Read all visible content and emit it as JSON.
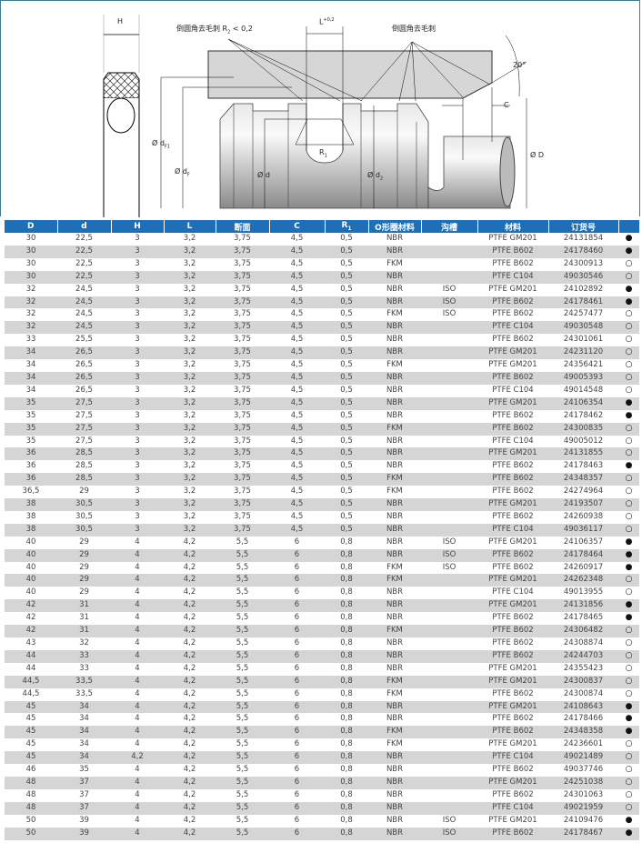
{
  "drawing": {
    "label_H": "H",
    "label_L": "L",
    "label_L_tol": "+0,2",
    "label_chamfer_r2": "倒圆角去毛刺 R",
    "label_r2_sub": "2",
    "label_r2_val": " < 0,2",
    "label_chamfer": "倒圆角去毛刺",
    "label_angle": "20°",
    "label_C": "C",
    "label_D": "Ø D",
    "label_dF1": "Ø d",
    "label_dF1_sub": "F1",
    "label_dF": "Ø d",
    "label_dF_sub": "F",
    "label_d": "Ø d",
    "label_R1": "R",
    "label_R1_sub": "1",
    "label_d2": "Ø d",
    "label_d2_sub": "2"
  },
  "table": {
    "headers": [
      "D",
      "d",
      "H",
      "L",
      "断面",
      "C",
      "R",
      "O形圈材料",
      "沟槽",
      "材料",
      "订货号",
      ""
    ],
    "header_R_sub": "1",
    "marker_symbols": {
      "filled": "●",
      "open": "○"
    },
    "rows": [
      [
        "30",
        "22,5",
        "3",
        "3,2",
        "3,75",
        "4,5",
        "0,5",
        "NBR",
        "",
        "PTFE GM201",
        "24131854",
        "filled"
      ],
      [
        "30",
        "22,5",
        "3",
        "3,2",
        "3,75",
        "4,5",
        "0,5",
        "NBR",
        "",
        "PTFE B602",
        "24178460",
        "filled"
      ],
      [
        "30",
        "22,5",
        "3",
        "3,2",
        "3,75",
        "4,5",
        "0,5",
        "FKM",
        "",
        "PTFE B602",
        "24300913",
        "open"
      ],
      [
        "30",
        "22,5",
        "3",
        "3,2",
        "3,75",
        "4,5",
        "0,5",
        "NBR",
        "",
        "PTFE C104",
        "49030546",
        "open"
      ],
      [
        "32",
        "24,5",
        "3",
        "3,2",
        "3,75",
        "4,5",
        "0,5",
        "NBR",
        "ISO",
        "PTFE GM201",
        "24102892",
        "filled"
      ],
      [
        "32",
        "24,5",
        "3",
        "3,2",
        "3,75",
        "4,5",
        "0,5",
        "NBR",
        "ISO",
        "PTFE B602",
        "24178461",
        "filled"
      ],
      [
        "32",
        "24,5",
        "3",
        "3,2",
        "3,75",
        "4,5",
        "0,5",
        "FKM",
        "ISO",
        "PTFE B602",
        "24257477",
        "open"
      ],
      [
        "32",
        "24,5",
        "3",
        "3,2",
        "3,75",
        "4,5",
        "0,5",
        "NBR",
        "",
        "PTFE C104",
        "49030548",
        "open"
      ],
      [
        "33",
        "25,5",
        "3",
        "3,2",
        "3,75",
        "4,5",
        "0,5",
        "NBR",
        "",
        "PTFE B602",
        "24301061",
        "open"
      ],
      [
        "34",
        "26,5",
        "3",
        "3,2",
        "3,75",
        "4,5",
        "0,5",
        "NBR",
        "",
        "PTFE GM201",
        "24231120",
        "open"
      ],
      [
        "34",
        "26,5",
        "3",
        "3,2",
        "3,75",
        "4,5",
        "0,5",
        "FKM",
        "",
        "PTFE GM201",
        "24356421",
        "open"
      ],
      [
        "34",
        "26,5",
        "3",
        "3,2",
        "3,75",
        "4,5",
        "0,5",
        "NBR",
        "",
        "PTFE B602",
        "49005393",
        "open"
      ],
      [
        "34",
        "26,5",
        "3",
        "3,2",
        "3,75",
        "4,5",
        "0,5",
        "NBR",
        "",
        "PTFE C104",
        "49014548",
        "open"
      ],
      [
        "35",
        "27,5",
        "3",
        "3,2",
        "3,75",
        "4,5",
        "0,5",
        "NBR",
        "",
        "PTFE GM201",
        "24106354",
        "filled"
      ],
      [
        "35",
        "27,5",
        "3",
        "3,2",
        "3,75",
        "4,5",
        "0,5",
        "NBR",
        "",
        "PTFE B602",
        "24178462",
        "filled"
      ],
      [
        "35",
        "27,5",
        "3",
        "3,2",
        "3,75",
        "4,5",
        "0,5",
        "FKM",
        "",
        "PTFE B602",
        "24300835",
        "open"
      ],
      [
        "35",
        "27,5",
        "3",
        "3,2",
        "3,75",
        "4,5",
        "0,5",
        "NBR",
        "",
        "PTFE C104",
        "49005012",
        "open"
      ],
      [
        "36",
        "28,5",
        "3",
        "3,2",
        "3,75",
        "4,5",
        "0,5",
        "NBR",
        "",
        "PTFE GM201",
        "24131855",
        "open"
      ],
      [
        "36",
        "28,5",
        "3",
        "3,2",
        "3,75",
        "4,5",
        "0,5",
        "NBR",
        "",
        "PTFE B602",
        "24178463",
        "filled"
      ],
      [
        "36",
        "28,5",
        "3",
        "3,2",
        "3,75",
        "4,5",
        "0,5",
        "FKM",
        "",
        "PTFE B602",
        "24348357",
        "open"
      ],
      [
        "36,5",
        "29",
        "3",
        "3,2",
        "3,75",
        "4,5",
        "0,5",
        "FKM",
        "",
        "PTFE B602",
        "24274964",
        "open"
      ],
      [
        "38",
        "30,5",
        "3",
        "3,2",
        "3,75",
        "4,5",
        "0,5",
        "NBR",
        "",
        "PTFE GM201",
        "24193507",
        "open"
      ],
      [
        "38",
        "30,5",
        "3",
        "3,2",
        "3,75",
        "4,5",
        "0,5",
        "NBR",
        "",
        "PTFE B602",
        "24260938",
        "open"
      ],
      [
        "38",
        "30,5",
        "3",
        "3,2",
        "3,75",
        "4,5",
        "0,5",
        "NBR",
        "",
        "PTFE C104",
        "49036117",
        "open"
      ],
      [
        "40",
        "29",
        "4",
        "4,2",
        "5,5",
        "6",
        "0,8",
        "NBR",
        "ISO",
        "PTFE GM201",
        "24106357",
        "filled"
      ],
      [
        "40",
        "29",
        "4",
        "4,2",
        "5,5",
        "6",
        "0,8",
        "NBR",
        "ISO",
        "PTFE B602",
        "24178464",
        "filled"
      ],
      [
        "40",
        "29",
        "4",
        "4,2",
        "5,5",
        "6",
        "0,8",
        "FKM",
        "ISO",
        "PTFE B602",
        "24260917",
        "filled"
      ],
      [
        "40",
        "29",
        "4",
        "4,2",
        "5,5",
        "6",
        "0,8",
        "FKM",
        "",
        "PTFE GM201",
        "24262348",
        "open"
      ],
      [
        "40",
        "29",
        "4",
        "4,2",
        "5,5",
        "6",
        "0,8",
        "NBR",
        "",
        "PTFE C104",
        "49013955",
        "open"
      ],
      [
        "42",
        "31",
        "4",
        "4,2",
        "5,5",
        "6",
        "0,8",
        "NBR",
        "",
        "PTFE GM201",
        "24131856",
        "filled"
      ],
      [
        "42",
        "31",
        "4",
        "4,2",
        "5,5",
        "6",
        "0,8",
        "NBR",
        "",
        "PTFE B602",
        "24178465",
        "filled"
      ],
      [
        "42",
        "31",
        "4",
        "4,2",
        "5,5",
        "6",
        "0,8",
        "FKM",
        "",
        "PTFE B602",
        "24306482",
        "open"
      ],
      [
        "43",
        "32",
        "4",
        "4,2",
        "5,5",
        "6",
        "0,8",
        "NBR",
        "",
        "PTFE B602",
        "24308874",
        "open"
      ],
      [
        "44",
        "33",
        "4",
        "4,2",
        "5,5",
        "6",
        "0,8",
        "NBR",
        "",
        "PTFE B602",
        "24244703",
        "open"
      ],
      [
        "44",
        "33",
        "4",
        "4,2",
        "5,5",
        "6",
        "0,8",
        "NBR",
        "",
        "PTFE GM201",
        "24355423",
        "open"
      ],
      [
        "44,5",
        "33,5",
        "4",
        "4,2",
        "5,5",
        "6",
        "0,8",
        "FKM",
        "",
        "PTFE GM201",
        "24300837",
        "open"
      ],
      [
        "44,5",
        "33,5",
        "4",
        "4,2",
        "5,5",
        "6",
        "0,8",
        "FKM",
        "",
        "PTFE B602",
        "24300874",
        "open"
      ],
      [
        "45",
        "34",
        "4",
        "4,2",
        "5,5",
        "6",
        "0,8",
        "NBR",
        "",
        "PTFE GM201",
        "24108643",
        "filled"
      ],
      [
        "45",
        "34",
        "4",
        "4,2",
        "5,5",
        "6",
        "0,8",
        "NBR",
        "",
        "PTFE B602",
        "24178466",
        "filled"
      ],
      [
        "45",
        "34",
        "4",
        "4,2",
        "5,5",
        "6",
        "0,8",
        "FKM",
        "",
        "PTFE B602",
        "24348358",
        "filled"
      ],
      [
        "45",
        "34",
        "4",
        "4,2",
        "5,5",
        "6",
        "0,8",
        "FKM",
        "",
        "PTFE GM201",
        "24236601",
        "open"
      ],
      [
        "45",
        "34",
        "4,2",
        "4,2",
        "5,5",
        "6",
        "0,8",
        "NBR",
        "",
        "PTFE C104",
        "49021489",
        "open"
      ],
      [
        "46",
        "35",
        "4",
        "4,2",
        "5,5",
        "6",
        "0,8",
        "NBR",
        "",
        "PTFE B602",
        "49037746",
        "open"
      ],
      [
        "48",
        "37",
        "4",
        "4,2",
        "5,5",
        "6",
        "0,8",
        "NBR",
        "",
        "PTFE GM201",
        "24251038",
        "open"
      ],
      [
        "48",
        "37",
        "4",
        "4,2",
        "5,5",
        "6",
        "0,8",
        "NBR",
        "",
        "PTFE B602",
        "24301063",
        "open"
      ],
      [
        "48",
        "37",
        "4",
        "4,2",
        "5,5",
        "6",
        "0,8",
        "NBR",
        "",
        "PTFE C104",
        "49021959",
        "open"
      ],
      [
        "50",
        "39",
        "4",
        "4,2",
        "5,5",
        "6",
        "0,8",
        "NBR",
        "ISO",
        "PTFE GM201",
        "24109476",
        "filled"
      ],
      [
        "50",
        "39",
        "4",
        "4,2",
        "5,5",
        "6",
        "0,8",
        "NBR",
        "ISO",
        "PTFE B602",
        "24178467",
        "filled"
      ]
    ]
  },
  "colors": {
    "header_bg": "#1d6fb8",
    "stripe": "#d5d5d5",
    "frame": "#3c7f8c"
  }
}
